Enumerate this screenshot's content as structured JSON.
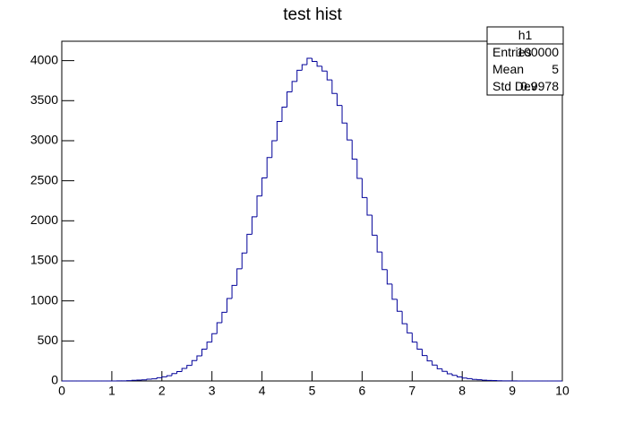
{
  "chart_data": {
    "type": "histogram",
    "title": "test hist",
    "color": "#000099",
    "bins": [
      0,
      0.1,
      0.2,
      0.3,
      0.4,
      0.5,
      0.6,
      0.7,
      0.8,
      0.9,
      1,
      1.1,
      1.2,
      1.3,
      1.4,
      1.5,
      1.6,
      1.7,
      1.8,
      1.9,
      2,
      2.1,
      2.2,
      2.3,
      2.4,
      2.5,
      2.6,
      2.7,
      2.8,
      2.9,
      3,
      3.1,
      3.2,
      3.3,
      3.4,
      3.5,
      3.6,
      3.7,
      3.8,
      3.9,
      4,
      4.1,
      4.2,
      4.3,
      4.4,
      4.5,
      4.6,
      4.7,
      4.8,
      4.9,
      5,
      5.1,
      5.2,
      5.3,
      5.4,
      5.5,
      5.6,
      5.7,
      5.8,
      5.9,
      6,
      6.1,
      6.2,
      6.3,
      6.4,
      6.5,
      6.6,
      6.7,
      6.8,
      6.9,
      7,
      7.1,
      7.2,
      7.3,
      7.4,
      7.5,
      7.6,
      7.7,
      7.8,
      7.9,
      8,
      8.1,
      8.2,
      8.3,
      8.4,
      8.5,
      8.6,
      8.7,
      8.8,
      8.9,
      9,
      9.1,
      9.2,
      9.3,
      9.4,
      9.5,
      9.6,
      9.7,
      9.8,
      9.9,
      10
    ],
    "values": [
      0,
      0,
      0,
      0,
      0,
      0,
      0,
      0,
      0,
      0,
      0,
      1,
      2,
      4,
      8,
      11,
      14,
      22,
      27,
      40,
      52,
      66,
      93,
      117,
      157,
      195,
      255,
      314,
      398,
      485,
      590,
      727,
      858,
      1030,
      1193,
      1401,
      1598,
      1832,
      2050,
      2310,
      2535,
      2790,
      3000,
      3240,
      3420,
      3610,
      3740,
      3880,
      3950,
      4030,
      3990,
      3930,
      3870,
      3760,
      3590,
      3440,
      3220,
      3010,
      2770,
      2530,
      2290,
      2070,
      1820,
      1610,
      1390,
      1210,
      1020,
      870,
      715,
      600,
      485,
      398,
      318,
      250,
      199,
      152,
      121,
      89,
      70,
      50,
      37,
      29,
      19,
      16,
      10,
      7,
      5,
      3,
      2,
      1,
      1,
      0,
      0,
      0,
      0,
      0,
      0,
      0,
      0,
      0
    ],
    "xlim": [
      0,
      10
    ],
    "ylim": [
      0,
      4242
    ],
    "xticks": [
      0,
      1,
      2,
      3,
      4,
      5,
      6,
      7,
      8,
      9,
      10
    ],
    "yticks": [
      0,
      500,
      1000,
      1500,
      2000,
      2500,
      3000,
      3500,
      4000
    ],
    "stats": {
      "name": "h1",
      "rows": [
        {
          "label": "Entries",
          "value": 100000
        },
        {
          "label": "Mean",
          "value": 5
        },
        {
          "label": "Std Dev",
          "value": 0.9978
        }
      ]
    }
  }
}
